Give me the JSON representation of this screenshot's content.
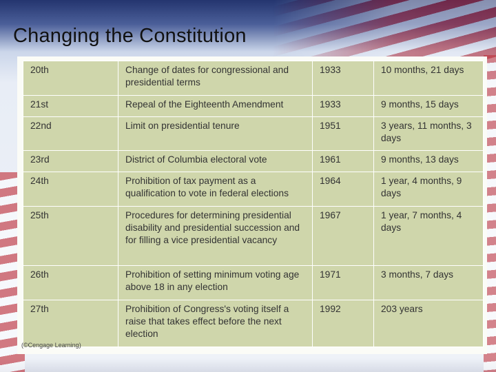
{
  "title": "Changing the Constitution",
  "rows": [
    {
      "amendment": "20th",
      "subject": "Change of dates for congressional and presidential terms",
      "year": "1933",
      "time": "10 months, 21 days"
    },
    {
      "amendment": "21st",
      "subject": "Repeal of the Eighteenth Amendment",
      "year": "1933",
      "time": "9 months, 15 days"
    },
    {
      "amendment": "22nd",
      "subject": "Limit on presidential tenure",
      "year": "1951",
      "time": "3 years, 11 months, 3 days"
    },
    {
      "amendment": "23rd",
      "subject": "District of Columbia electoral vote",
      "year": "1961",
      "time": "9 months, 13 days"
    },
    {
      "amendment": "24th",
      "subject": "Prohibition of tax payment as a qualification to vote in federal elections",
      "year": "1964",
      "time": "1 year, 4 months, 9 days"
    },
    {
      "amendment": "25th",
      "subject": "Procedures for determining presidential disability and presidential succession and for filling a vice presidential vacancy",
      "year": "1967",
      "time": "1 year, 7 months, 4 days"
    },
    {
      "amendment": "26th",
      "subject": "Prohibition of setting minimum voting age above 18 in any election",
      "year": "1971",
      "time": "3 months, 7 days"
    },
    {
      "amendment": "27th",
      "subject": "Prohibition of Congress's voting itself a raise that takes effect before the next election",
      "year": "1992",
      "time": "203 years"
    }
  ],
  "credit": "(©Cengage Learning)"
}
